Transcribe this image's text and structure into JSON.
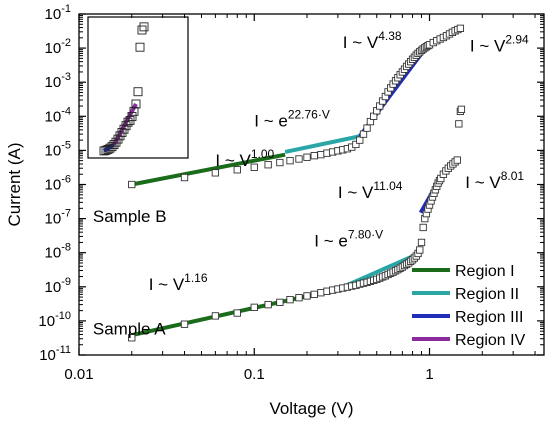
{
  "chart_data": {
    "type": "scatter",
    "xlabel": "Voltage (V)",
    "ylabel": "Current (A)",
    "xscale": "log",
    "yscale": "log",
    "xlim": [
      0.01,
      4.5
    ],
    "ylim": [
      1e-11,
      0.1
    ],
    "x_tick_labels": [
      "0.01",
      "0.1",
      "1"
    ],
    "y_tick_labels": [
      "10-11",
      "10-10",
      "10-9",
      "10-8",
      "10-7",
      "10-6",
      "10-5",
      "10-4",
      "10-3",
      "10-2",
      "10-1"
    ],
    "grid": false,
    "legend_position": "bottom-right",
    "series": [
      {
        "name": "Sample A",
        "points": [
          [
            0.02,
            3.2e-11
          ],
          [
            0.04,
            8e-11
          ],
          [
            0.06,
            1.4e-10
          ],
          [
            0.08,
            1.7e-10
          ],
          [
            0.1,
            2.5e-10
          ],
          [
            0.12,
            3e-10
          ],
          [
            0.14,
            3.5e-10
          ],
          [
            0.16,
            4.2e-10
          ],
          [
            0.18,
            4.8e-10
          ],
          [
            0.2,
            5.4e-10
          ],
          [
            0.22,
            6e-10
          ],
          [
            0.24,
            6.7e-10
          ],
          [
            0.26,
            7.4e-10
          ],
          [
            0.28,
            8e-10
          ],
          [
            0.3,
            8.6e-10
          ],
          [
            0.32,
            9.2e-10
          ],
          [
            0.34,
            9.8e-10
          ],
          [
            0.36,
            1.05e-09
          ],
          [
            0.38,
            1.1e-09
          ],
          [
            0.4,
            1.2e-09
          ],
          [
            0.42,
            1.28e-09
          ],
          [
            0.44,
            1.35e-09
          ],
          [
            0.46,
            1.45e-09
          ],
          [
            0.48,
            1.55e-09
          ],
          [
            0.5,
            1.65e-09
          ],
          [
            0.52,
            1.8e-09
          ],
          [
            0.54,
            1.95e-09
          ],
          [
            0.56,
            2.1e-09
          ],
          [
            0.58,
            2.3e-09
          ],
          [
            0.6,
            2.5e-09
          ],
          [
            0.62,
            2.7e-09
          ],
          [
            0.64,
            2.95e-09
          ],
          [
            0.66,
            3.2e-09
          ],
          [
            0.68,
            3.5e-09
          ],
          [
            0.7,
            3.8e-09
          ],
          [
            0.72,
            4.2e-09
          ],
          [
            0.74,
            4.6e-09
          ],
          [
            0.76,
            5e-09
          ],
          [
            0.78,
            5.6e-09
          ],
          [
            0.8,
            6.2e-09
          ],
          [
            0.82,
            7e-09
          ],
          [
            0.84,
            8e-09
          ],
          [
            0.86,
            9.5e-09
          ],
          [
            0.88,
            1.2e-08
          ],
          [
            0.9,
            2e-08
          ],
          [
            0.92,
            5.5e-08
          ],
          [
            0.94,
            1e-07
          ],
          [
            0.96,
            1.4e-07
          ],
          [
            0.98,
            1.9e-07
          ],
          [
            1.0,
            2.5e-07
          ],
          [
            1.02,
            3.3e-07
          ],
          [
            1.04,
            4.3e-07
          ],
          [
            1.06,
            5.5e-07
          ],
          [
            1.08,
            7e-07
          ],
          [
            1.1,
            8.8e-07
          ],
          [
            1.12,
            1.1e-06
          ],
          [
            1.14,
            1.3e-06
          ],
          [
            1.16,
            1.5e-06
          ],
          [
            1.2,
            2e-06
          ],
          [
            1.24,
            2.5e-06
          ],
          [
            1.28,
            3e-06
          ],
          [
            1.32,
            3.5e-06
          ],
          [
            1.36,
            4e-06
          ],
          [
            1.4,
            4.6e-06
          ],
          [
            1.44,
            5.2e-06
          ],
          [
            1.47,
            6e-05
          ],
          [
            1.5,
            0.00014
          ],
          [
            1.52,
            0.00016
          ]
        ]
      },
      {
        "name": "Sample B",
        "points": [
          [
            0.02,
            1e-06
          ],
          [
            0.04,
            1.6e-06
          ],
          [
            0.06,
            2.2e-06
          ],
          [
            0.08,
            2.7e-06
          ],
          [
            0.1,
            3.2e-06
          ],
          [
            0.12,
            3.8e-06
          ],
          [
            0.14,
            4.4e-06
          ],
          [
            0.16,
            5e-06
          ],
          [
            0.18,
            5.6e-06
          ],
          [
            0.2,
            6.3e-06
          ],
          [
            0.22,
            7e-06
          ],
          [
            0.24,
            7.5e-06
          ],
          [
            0.26,
            8.3e-06
          ],
          [
            0.28,
            9e-06
          ],
          [
            0.3,
            9.7e-06
          ],
          [
            0.32,
            1.04e-05
          ],
          [
            0.34,
            1.12e-05
          ],
          [
            0.36,
            1.25e-05
          ],
          [
            0.38,
            1.5e-05
          ],
          [
            0.4,
            2e-05
          ],
          [
            0.42,
            3e-05
          ],
          [
            0.44,
            4.5e-05
          ],
          [
            0.46,
            7e-05
          ],
          [
            0.48,
            0.0001
          ],
          [
            0.5,
            0.000145
          ],
          [
            0.52,
            0.0002
          ],
          [
            0.54,
            0.00028
          ],
          [
            0.56,
            0.00038
          ],
          [
            0.58,
            0.00052
          ],
          [
            0.6,
            0.00068
          ],
          [
            0.62,
            0.00088
          ],
          [
            0.64,
            0.0011
          ],
          [
            0.66,
            0.00135
          ],
          [
            0.68,
            0.00165
          ],
          [
            0.7,
            0.002
          ],
          [
            0.72,
            0.0024
          ],
          [
            0.74,
            0.0029
          ],
          [
            0.76,
            0.0034
          ],
          [
            0.78,
            0.004
          ],
          [
            0.8,
            0.0047
          ],
          [
            0.82,
            0.0054
          ],
          [
            0.84,
            0.0062
          ],
          [
            0.86,
            0.007
          ],
          [
            0.88,
            0.0078
          ],
          [
            0.9,
            0.0086
          ],
          [
            0.92,
            0.0094
          ],
          [
            0.94,
            0.0102
          ],
          [
            0.96,
            0.011
          ],
          [
            0.98,
            0.0118
          ],
          [
            1.0,
            0.0125
          ],
          [
            1.05,
            0.0145
          ],
          [
            1.1,
            0.0165
          ],
          [
            1.15,
            0.0185
          ],
          [
            1.2,
            0.0205
          ],
          [
            1.25,
            0.023
          ],
          [
            1.3,
            0.026
          ],
          [
            1.35,
            0.029
          ],
          [
            1.4,
            0.032
          ],
          [
            1.45,
            0.035
          ],
          [
            1.5,
            0.038
          ]
        ]
      }
    ],
    "fits": [
      {
        "name": "Region I",
        "color": "#1a6b1a",
        "segments": [
          [
            [
              0.02,
              3.8e-11
            ],
            [
              0.3,
              8.5e-10
            ]
          ],
          [
            [
              0.02,
              1e-06
            ],
            [
              0.15,
              7.5e-06
            ]
          ]
        ]
      },
      {
        "name": "Region II",
        "color": "#2aa6a6",
        "segments": [
          [
            [
              0.3,
              8.5e-10
            ],
            [
              0.83,
              8.5e-09
            ]
          ],
          [
            [
              0.15,
              9e-06
            ],
            [
              0.4,
              2.6e-05
            ]
          ]
        ]
      },
      {
        "name": "Region III",
        "color": "#1f2db8",
        "segments": [
          [
            [
              0.89,
              1.5e-07
            ],
            [
              1.15,
              1.5e-06
            ]
          ],
          [
            [
              0.4,
              2.6e-05
            ],
            [
              0.95,
              0.01
            ]
          ]
        ]
      },
      {
        "name": "Region IV",
        "color": "#8a2b9e",
        "segments": [
          [
            [
              1.2,
              2e-06
            ],
            [
              1.45,
              5.5e-06
            ]
          ],
          [
            [
              0.95,
              0.01
            ],
            [
              1.5,
              0.038
            ]
          ]
        ]
      }
    ],
    "annotations": [
      {
        "base": "I ~ V",
        "sup": "1.16",
        "x": 0.025,
        "y": 8e-10
      },
      {
        "base": "I ~ e",
        "sup": "7.80·V",
        "x": 0.22,
        "y": 1.5e-08
      },
      {
        "base": "I ~ V",
        "sup": "11.04",
        "x": 0.3,
        "y": 4e-07
      },
      {
        "base": "I ~ V",
        "sup": "8.01",
        "x": 1.6,
        "y": 8e-07
      },
      {
        "base": "I ~ V",
        "sup": "1.00",
        "x": 0.06,
        "y": 3.5e-06
      },
      {
        "base": "I ~ e",
        "sup": "22.76·V",
        "x": 0.1,
        "y": 5e-05
      },
      {
        "base": "I ~ V",
        "sup": "4.38",
        "x": 0.32,
        "y": 0.01
      },
      {
        "base": "I ~ V",
        "sup": "2.94",
        "x": 1.7,
        "y": 0.008
      }
    ],
    "sample_labels": [
      {
        "text": "Sample B",
        "x": 0.012,
        "y": 8e-08
      },
      {
        "text": "Sample A",
        "x": 0.012,
        "y": 4e-11
      }
    ],
    "inset": {
      "points": [
        [
          0,
          8e-06
        ],
        [
          1,
          8.3e-06
        ],
        [
          2,
          8.8e-06
        ],
        [
          3,
          9.5e-06
        ],
        [
          4,
          1.05e-05
        ],
        [
          5,
          1.2e-05
        ],
        [
          6,
          1.4e-05
        ],
        [
          7,
          1.7e-05
        ],
        [
          8,
          2.1e-05
        ],
        [
          9,
          2.6e-05
        ],
        [
          10,
          3.2e-05
        ],
        [
          11,
          4e-05
        ],
        [
          12,
          5e-05
        ],
        [
          13,
          5.6e-05
        ],
        [
          14,
          7.2e-05
        ],
        [
          15,
          0.0001
        ],
        [
          16,
          0.00016
        ],
        [
          17,
          0.00035
        ],
        [
          18,
          0.006
        ],
        [
          19,
          0.018
        ],
        [
          20,
          0.022
        ]
      ],
      "fit_segments": [
        {
          "color": "#1f2db8",
          "from": 0,
          "to": 5
        },
        {
          "color": "#8a2b9e",
          "from": 5,
          "to": 16
        }
      ]
    }
  }
}
